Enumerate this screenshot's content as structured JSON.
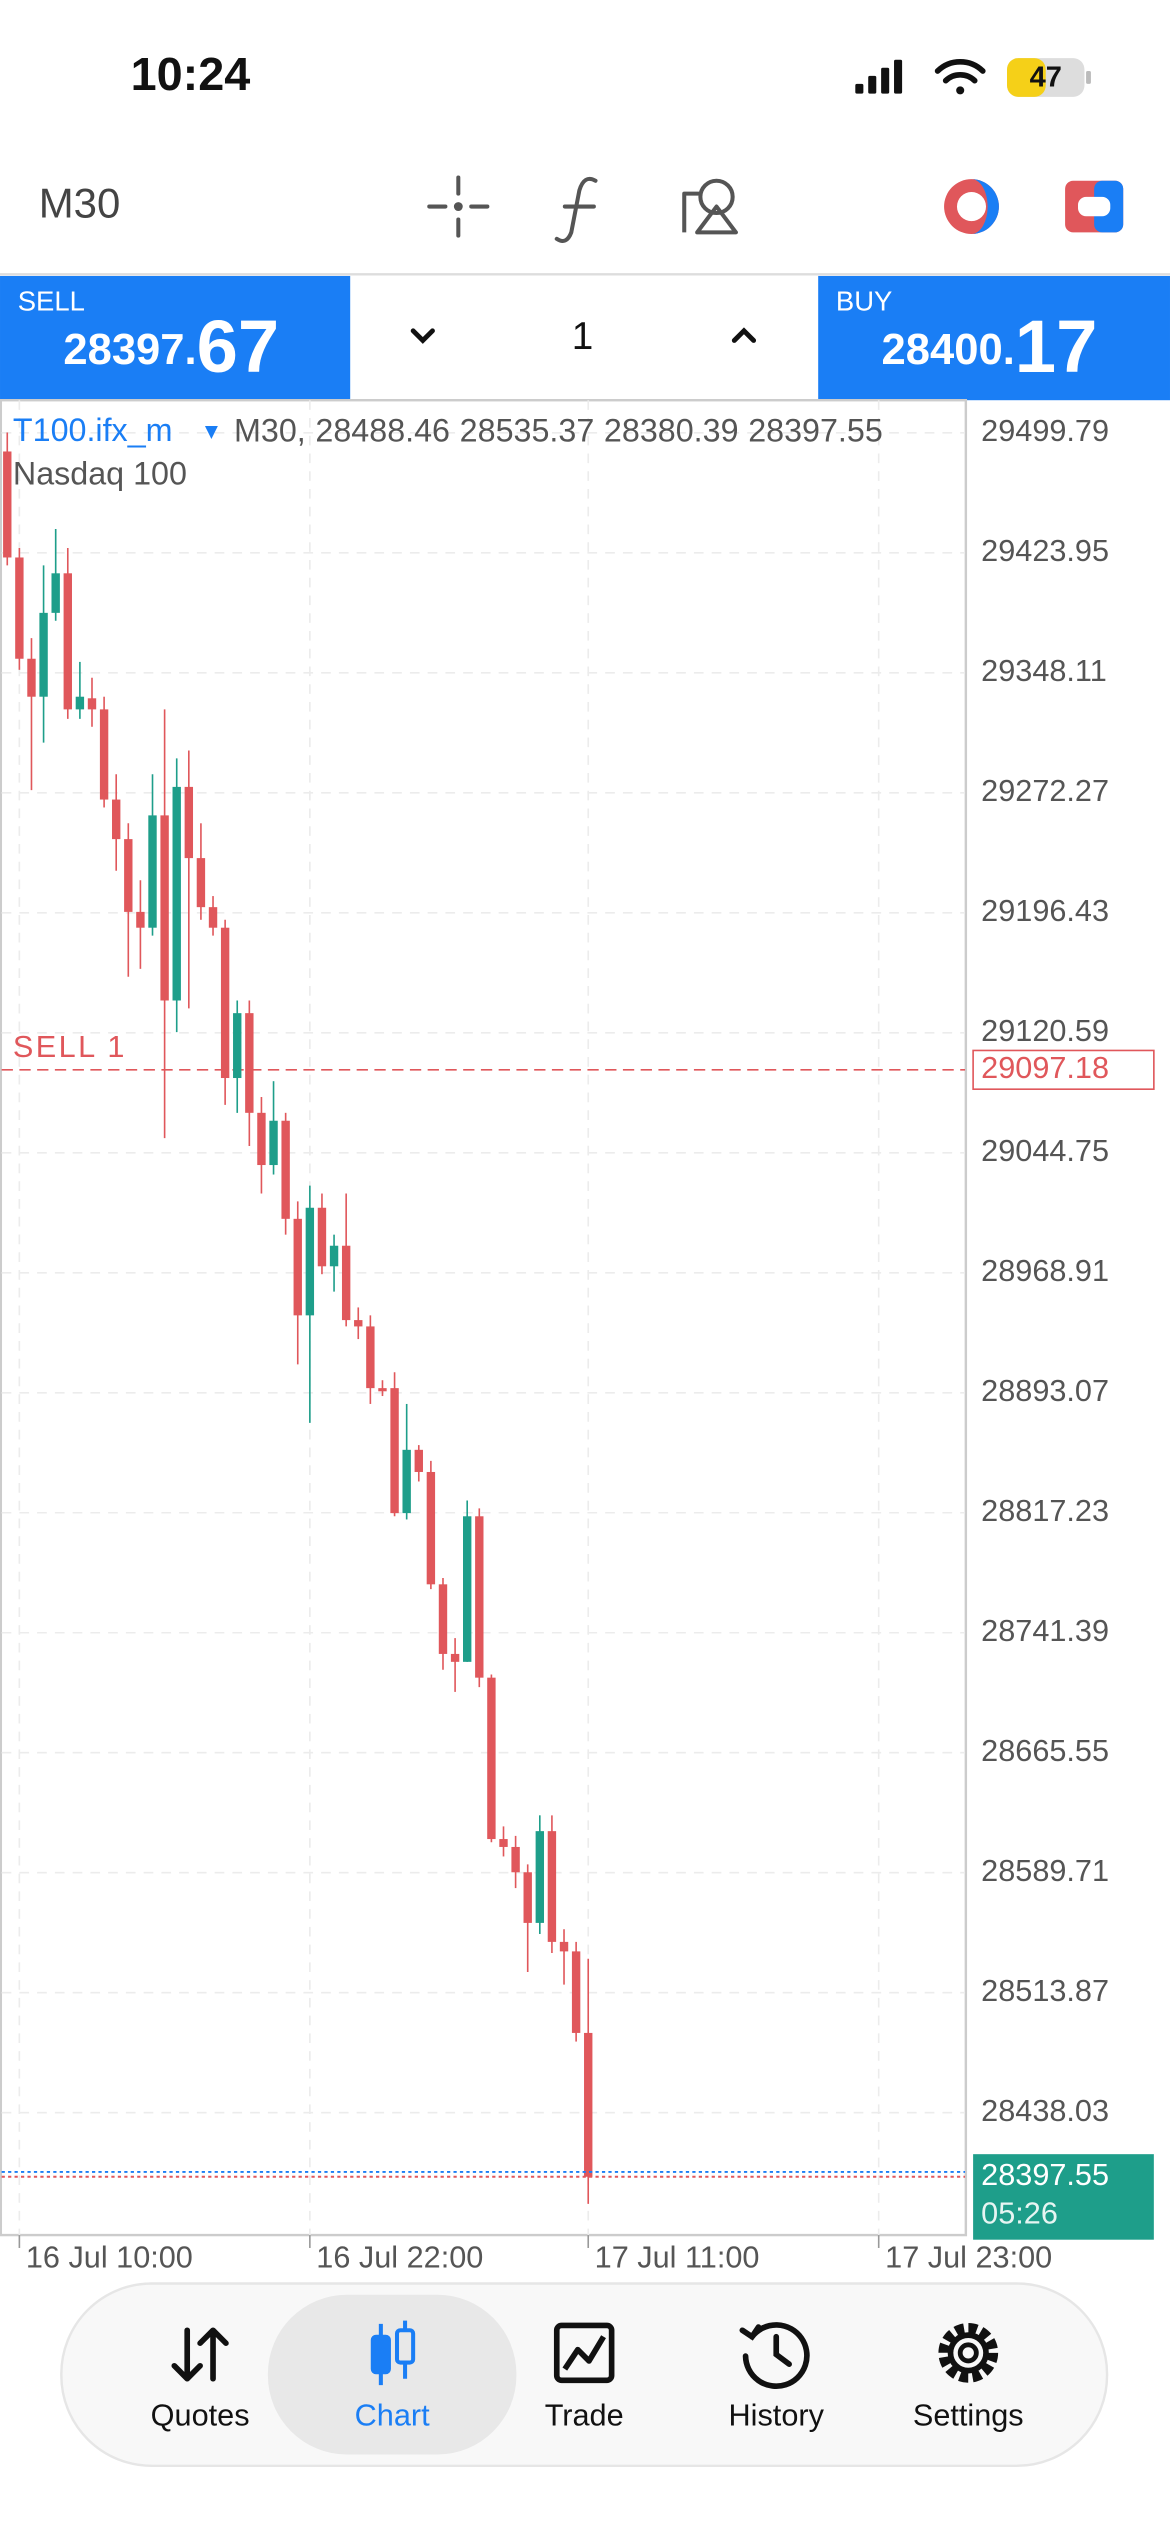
{
  "status": {
    "time": "10:24",
    "battery": "47"
  },
  "toolbar": {
    "timeframe": "M30"
  },
  "trade": {
    "sell_label": "SELL",
    "sell_price_main": "28397.",
    "sell_price_pips": "67",
    "lot": "1",
    "buy_label": "BUY",
    "buy_price_main": "28400.",
    "buy_price_pips": "17"
  },
  "tabs": [
    "Quotes",
    "Chart",
    "Trade",
    "History",
    "Settings"
  ],
  "chart_data": {
    "type": "candlestick",
    "title": "T100.ifx_m",
    "subtitle": "Nasdaq 100",
    "timeframe": "M30,",
    "categories": [
      null,
      "16 Jul 10:00",
      null,
      null,
      null,
      null,
      null,
      null,
      null,
      null,
      null,
      null,
      null,
      null,
      null,
      null,
      null,
      null,
      null,
      null,
      null,
      null,
      null,
      null,
      null,
      "16 Jul 22:00",
      null,
      null,
      null,
      null,
      null,
      null,
      null,
      null,
      null,
      null,
      null,
      null,
      null,
      null,
      null,
      null,
      null,
      null,
      null,
      null,
      null,
      null,
      "17 Jul 11:00",
      null,
      null,
      null,
      null,
      null,
      null,
      null,
      null,
      null,
      null,
      null,
      null,
      null,
      null,
      null,
      null,
      null,
      null,
      null,
      null,
      null,
      null,
      null,
      "17 Jul 23:00",
      null,
      null,
      null,
      null,
      null,
      null,
      null
    ],
    "open": [
      29488,
      29421,
      29357,
      29333,
      29386,
      29411,
      29325,
      29332,
      29325,
      29268,
      29243,
      29197,
      29187,
      29258,
      29141,
      29276,
      29231,
      29200,
      29187,
      29092,
      29133,
      29070,
      29037,
      29065,
      29003,
      28942,
      29010,
      28973,
      28986,
      28939,
      28935,
      28896,
      28896,
      28817,
      28857,
      28843,
      28772,
      28728,
      28723,
      28815,
      28713,
      28611,
      28606,
      28590,
      28558,
      28616,
      28546,
      28540,
      28488.46,
      null,
      null,
      null,
      null,
      null,
      null,
      null,
      null,
      null,
      null,
      null,
      null,
      null,
      null,
      null,
      null,
      null,
      null,
      null,
      null,
      null,
      null,
      null,
      null,
      null,
      null,
      null,
      null,
      null,
      null,
      null
    ],
    "high": [
      29500,
      29427,
      29370,
      29416,
      29439,
      29427,
      29355,
      29345,
      29333,
      29284,
      29253,
      29217,
      29284,
      29325,
      29294,
      29299,
      29253,
      29207,
      29192,
      29141,
      29141,
      29080,
      29090,
      29070,
      29014,
      29024,
      29019,
      28993,
      29019,
      28947,
      28942,
      28901,
      28906,
      28886,
      28860,
      28850,
      28776,
      28738,
      28825,
      28820,
      28715,
      28619,
      28613,
      28595,
      28626,
      28626,
      28554,
      28546,
      28535.37,
      null,
      null,
      null,
      null,
      null,
      null,
      null,
      null,
      null,
      null,
      null,
      null,
      null,
      null,
      null,
      null,
      null,
      null,
      null,
      null,
      null,
      null,
      null,
      null,
      null,
      null,
      null,
      null,
      null,
      null,
      null
    ],
    "low": [
      29416,
      29350,
      29274,
      29304,
      29381,
      29319,
      29319,
      29314,
      29263,
      29223,
      29156,
      29161,
      29182,
      29054,
      29121,
      29136,
      29192,
      29182,
      29075,
      29070,
      29049,
      29019,
      29031,
      28993,
      28911,
      28874,
      28968,
      28957,
      28935,
      28927,
      28886,
      28891,
      28815,
      28813,
      28837,
      28769,
      28718,
      28704,
      28723,
      28707,
      28609,
      28600,
      28580,
      28527,
      28551,
      28539,
      28519,
      28483,
      28380.39,
      null,
      null,
      null,
      null,
      null,
      null,
      null,
      null,
      null,
      null,
      null,
      null,
      null,
      null,
      null,
      null,
      null,
      null,
      null,
      null,
      null,
      null,
      null,
      null,
      null,
      null,
      null,
      null,
      null,
      null,
      null
    ],
    "close": [
      29421,
      29357,
      29333,
      29386,
      29411,
      29325,
      29333,
      29325,
      29268,
      29243,
      29197,
      29187,
      29258,
      29141,
      29276,
      29231,
      29200,
      29187,
      29092,
      29133,
      29070,
      29037,
      29065,
      29003,
      28942,
      29010,
      28973,
      28986,
      28939,
      28935,
      28896,
      28894,
      28817,
      28857,
      28843,
      28772,
      28728,
      28723,
      28815,
      28713,
      28611,
      28606,
      28590,
      28558,
      28616,
      28546,
      28540,
      28488.46,
      28397.55,
      null,
      null,
      null,
      null,
      null,
      null,
      null,
      null,
      null,
      null,
      null,
      null,
      null,
      null,
      null,
      null,
      null,
      null,
      null,
      null,
      null,
      null,
      null,
      null,
      null,
      null,
      null,
      null,
      null,
      null,
      null
    ],
    "up_color": "#1e9e8a",
    "down_color": "#e0575b",
    "ylim": [
      28360.7,
      29520.4
    ],
    "yticks": [
      29499.79,
      29423.95,
      29348.11,
      29272.27,
      29196.43,
      29120.59,
      29044.75,
      28968.91,
      28893.07,
      28817.23,
      28741.39,
      28665.55,
      28589.71,
      28513.87,
      28438.03
    ],
    "grid": true,
    "order_line": {
      "label": "SELL 1",
      "value": 29097.18,
      "color": "#e0575b"
    },
    "price_timer": "05:26"
  }
}
